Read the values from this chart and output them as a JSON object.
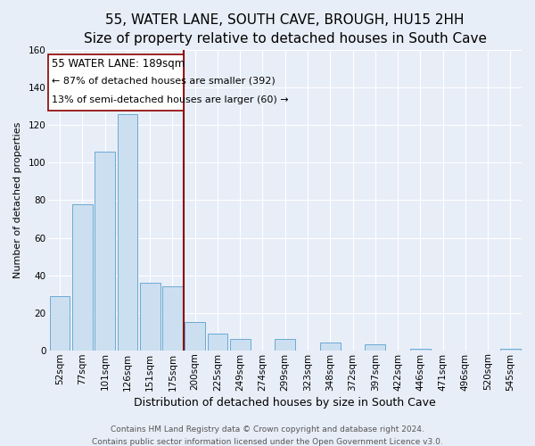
{
  "title": "55, WATER LANE, SOUTH CAVE, BROUGH, HU15 2HH",
  "subtitle": "Size of property relative to detached houses in South Cave",
  "xlabel": "Distribution of detached houses by size in South Cave",
  "ylabel": "Number of detached properties",
  "bar_labels": [
    "52sqm",
    "77sqm",
    "101sqm",
    "126sqm",
    "151sqm",
    "175sqm",
    "200sqm",
    "225sqm",
    "249sqm",
    "274sqm",
    "299sqm",
    "323sqm",
    "348sqm",
    "372sqm",
    "397sqm",
    "422sqm",
    "446sqm",
    "471sqm",
    "496sqm",
    "520sqm",
    "545sqm"
  ],
  "bar_heights": [
    29,
    78,
    106,
    126,
    36,
    34,
    15,
    9,
    6,
    0,
    6,
    0,
    4,
    0,
    3,
    0,
    1,
    0,
    0,
    0,
    1
  ],
  "bar_color": "#ccdff0",
  "bar_edgecolor": "#6aaad4",
  "vline_color": "#8b0000",
  "annotation_title": "55 WATER LANE: 189sqm",
  "annotation_line1": "← 87% of detached houses are smaller (392)",
  "annotation_line2": "13% of semi-detached houses are larger (60) →",
  "annotation_box_edgecolor": "#8b0000",
  "ylim": [
    0,
    160
  ],
  "yticks": [
    0,
    20,
    40,
    60,
    80,
    100,
    120,
    140,
    160
  ],
  "footer1": "Contains HM Land Registry data © Crown copyright and database right 2024.",
  "footer2": "Contains public sector information licensed under the Open Government Licence v3.0.",
  "bg_color": "#e8eef8",
  "plot_bg_color": "#e8eef8",
  "grid_color": "#ffffff",
  "title_fontsize": 11,
  "subtitle_fontsize": 9.5,
  "xlabel_fontsize": 9,
  "ylabel_fontsize": 8,
  "tick_fontsize": 7.5,
  "annotation_fontsize": 8.5,
  "footer_fontsize": 6.5
}
